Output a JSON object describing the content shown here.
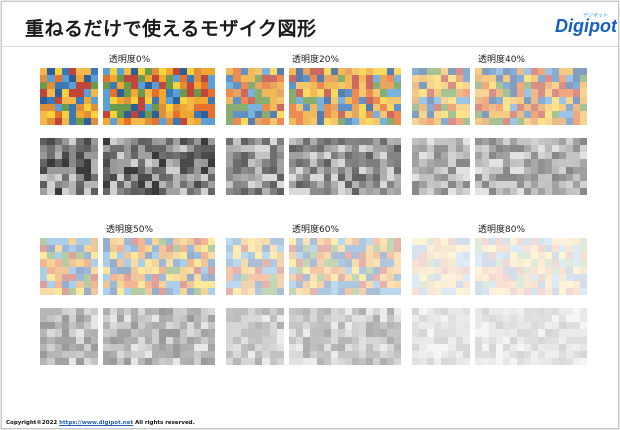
{
  "page": {
    "title": "重ねるだけで使えるモザイク図形"
  },
  "logo": {
    "text": "Digipot",
    "small_text": "デジポット",
    "colors": {
      "main": "#1560bd",
      "accent": "#2e8be0"
    }
  },
  "groups": [
    {
      "label": "透明度0%",
      "opacity": 0.0
    },
    {
      "label": "透明度20%",
      "opacity": 0.2
    },
    {
      "label": "透明度40%",
      "opacity": 0.4
    },
    {
      "label": "透明度50%",
      "opacity": 0.5
    },
    {
      "label": "透明度60%",
      "opacity": 0.6
    },
    {
      "label": "透明度80%",
      "opacity": 0.8
    }
  ],
  "palette": {
    "color": [
      "#f0a830",
      "#3a78b8",
      "#e0903a",
      "#c0453a",
      "#f7d23a",
      "#5a9fd6",
      "#e8702a",
      "#6a9a4a",
      "#f4b84a",
      "#2f5f9a"
    ],
    "gray": [
      "#3a3a3a",
      "#8a8a8a",
      "#5e5e5e",
      "#b5b5b5",
      "#4a4a4a",
      "#a0a0a0",
      "#707070",
      "#d0d0d0",
      "#666666",
      "#999999"
    ]
  },
  "footer": {
    "prefix": "Copyright©2022 ",
    "link": "https://www.digipot.net",
    "suffix": " All rights reserved."
  }
}
